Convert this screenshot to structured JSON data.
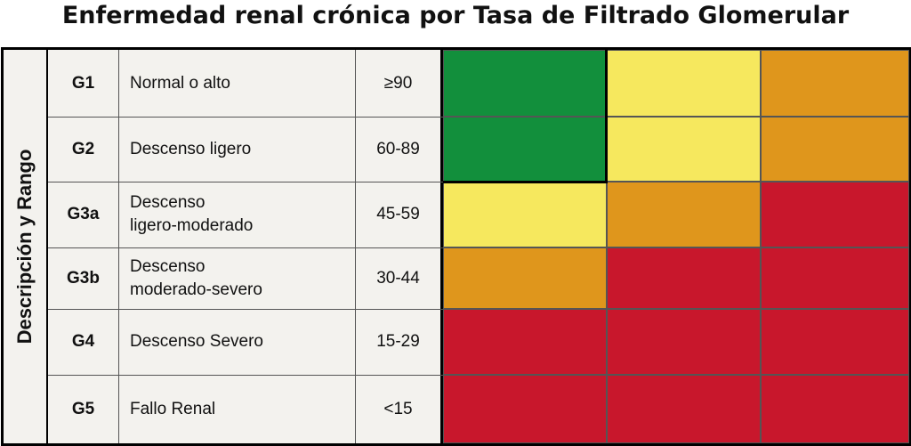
{
  "title": "Enfermedad renal crónica por Tasa de Filtrado Glomerular",
  "side_label": "Descripción y Rango",
  "colors": {
    "green": "#128f3c",
    "yellow": "#f6e85e",
    "orange": "#df961c",
    "red": "#c8172c"
  },
  "rows": [
    {
      "code": "G1",
      "description": "Normal o alto",
      "range": "≥90",
      "risk": [
        "green",
        "yellow",
        "orange"
      ]
    },
    {
      "code": "G2",
      "description": "Descenso ligero",
      "range": "60-89",
      "risk": [
        "green",
        "yellow",
        "orange"
      ]
    },
    {
      "code": "G3a",
      "description": "Descenso\nligero-moderado",
      "range": "45-59",
      "risk": [
        "yellow",
        "orange",
        "red"
      ]
    },
    {
      "code": "G3b",
      "description": "Descenso\nmoderado-severo",
      "range": "30-44",
      "risk": [
        "orange",
        "red",
        "red"
      ]
    },
    {
      "code": "G4",
      "description": "Descenso Severo",
      "range": "15-29",
      "risk": [
        "red",
        "red",
        "red"
      ]
    },
    {
      "code": "G5",
      "description": "Fallo Renal",
      "range": "<15",
      "risk": [
        "red",
        "red",
        "red"
      ]
    }
  ]
}
